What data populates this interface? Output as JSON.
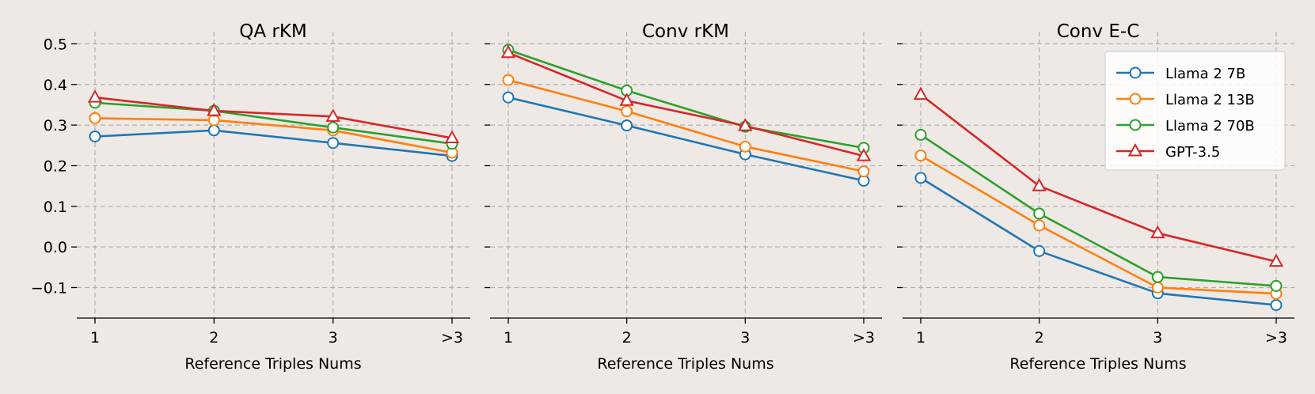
{
  "colors": {
    "background": "#efe9e5",
    "Llama 2 7B": "#1f77b4",
    "Llama 2 13B": "#ff7f0e",
    "Llama 2 70B": "#2ca02c",
    "GPT-3.5": "#d62728"
  },
  "markers": {
    "Llama 2 7B": "circle",
    "Llama 2 13B": "circle",
    "Llama 2 70B": "circle",
    "GPT-3.5": "triangle"
  },
  "legend": {
    "placement": "upper-right of third panel",
    "entries": [
      "Llama 2 7B",
      "Llama 2 13B",
      "Llama 2 70B",
      "GPT-3.5"
    ]
  },
  "chart_data": [
    {
      "type": "line",
      "title": "QA rKM",
      "xlabel": "Reference Triples Nums",
      "ylabel": "",
      "categories": [
        "1",
        "2",
        "3",
        ">3"
      ],
      "ylim": [
        -0.175,
        0.53
      ],
      "yticks": [
        -0.1,
        0.0,
        0.1,
        0.2,
        0.3,
        0.4,
        0.5
      ],
      "ytick_labels": [
        "−0.1",
        "0.0",
        "0.1",
        "0.2",
        "0.3",
        "0.4",
        "0.5"
      ],
      "grid": true,
      "series": [
        {
          "name": "Llama 2 7B",
          "values": [
            0.272,
            0.287,
            0.256,
            0.224
          ]
        },
        {
          "name": "Llama 2 13B",
          "values": [
            0.317,
            0.312,
            0.287,
            0.232
          ]
        },
        {
          "name": "Llama 2 70B",
          "values": [
            0.355,
            0.335,
            0.294,
            0.254
          ]
        },
        {
          "name": "GPT-3.5",
          "values": [
            0.368,
            0.335,
            0.321,
            0.268
          ]
        }
      ]
    },
    {
      "type": "line",
      "title": "Conv rKM",
      "xlabel": "Reference Triples Nums",
      "ylabel": "",
      "categories": [
        "1",
        "2",
        "3",
        ">3"
      ],
      "ylim": [
        -0.175,
        0.53
      ],
      "grid": true,
      "series": [
        {
          "name": "Llama 2 7B",
          "values": [
            0.368,
            0.299,
            0.228,
            0.163
          ]
        },
        {
          "name": "Llama 2 13B",
          "values": [
            0.411,
            0.334,
            0.247,
            0.186
          ]
        },
        {
          "name": "Llama 2 70B",
          "values": [
            0.485,
            0.385,
            0.296,
            0.244
          ]
        },
        {
          "name": "GPT-3.5",
          "values": [
            0.478,
            0.36,
            0.298,
            0.224
          ]
        }
      ]
    },
    {
      "type": "line",
      "title": "Conv E-C",
      "xlabel": "Reference Triples Nums",
      "ylabel": "",
      "categories": [
        "1",
        "2",
        "3",
        ">3"
      ],
      "ylim": [
        -0.175,
        0.53
      ],
      "grid": true,
      "series": [
        {
          "name": "Llama 2 7B",
          "values": [
            0.17,
            -0.01,
            -0.114,
            -0.143
          ]
        },
        {
          "name": "Llama 2 13B",
          "values": [
            0.225,
            0.053,
            -0.1,
            -0.115
          ]
        },
        {
          "name": "Llama 2 70B",
          "values": [
            0.276,
            0.082,
            -0.074,
            -0.096
          ]
        },
        {
          "name": "GPT-3.5",
          "values": [
            0.375,
            0.15,
            0.034,
            -0.036
          ]
        }
      ]
    }
  ]
}
